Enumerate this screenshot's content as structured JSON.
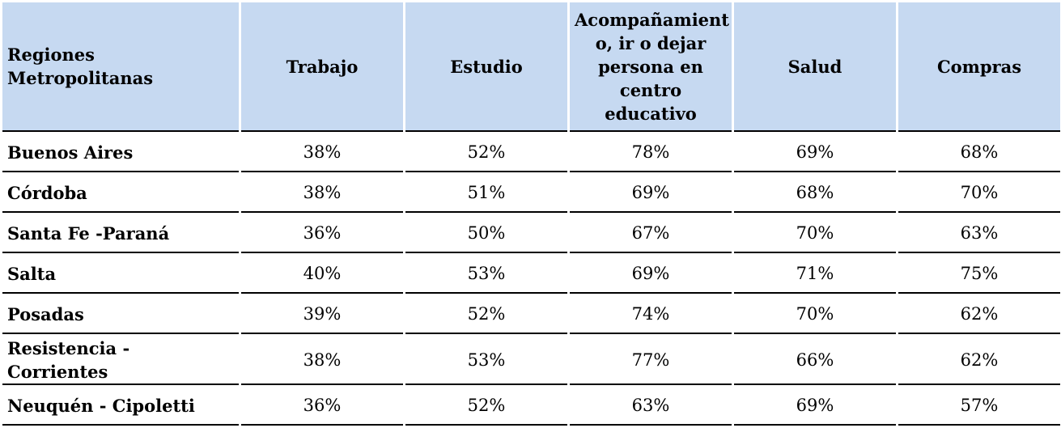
{
  "table": {
    "headers": [
      "Regiones Metropolitanas",
      "Trabajo",
      "Estudio",
      "Acompañamient o, ir o dejar persona en centro educativo",
      "Salud",
      "Compras"
    ],
    "header_lines": {
      "region": [
        "Regiones",
        "Metropolitanas"
      ],
      "acomp": [
        "Acompañamient",
        "o, ir o dejar",
        "persona en",
        "centro",
        "educativo"
      ]
    },
    "rows": [
      {
        "region": "Buenos Aires",
        "trabajo": "38%",
        "estudio": "52%",
        "acompanamiento": "78%",
        "salud": "69%",
        "compras": "68%"
      },
      {
        "region": "Córdoba",
        "trabajo": "38%",
        "estudio": "51%",
        "acompanamiento": "69%",
        "salud": "68%",
        "compras": "70%"
      },
      {
        "region": "Santa Fe -Paraná",
        "trabajo": "36%",
        "estudio": "50%",
        "acompanamiento": "67%",
        "salud": "70%",
        "compras": "63%"
      },
      {
        "region": "Salta",
        "trabajo": "40%",
        "estudio": "53%",
        "acompanamiento": "69%",
        "salud": "71%",
        "compras": "75%"
      },
      {
        "region": "Posadas",
        "trabajo": "39%",
        "estudio": "52%",
        "acompanamiento": "74%",
        "salud": "70%",
        "compras": "62%"
      },
      {
        "region": "Resistencia - Corrientes",
        "trabajo": "38%",
        "estudio": "53%",
        "acompanamiento": "77%",
        "salud": "66%",
        "compras": "62%"
      },
      {
        "region": "Neuquén - Cipoletti",
        "trabajo": "36%",
        "estudio": "52%",
        "acompanamiento": "63%",
        "salud": "69%",
        "compras": "57%"
      }
    ]
  },
  "colors": {
    "header_background": "#c6d9f1",
    "row_border": "#000000"
  }
}
